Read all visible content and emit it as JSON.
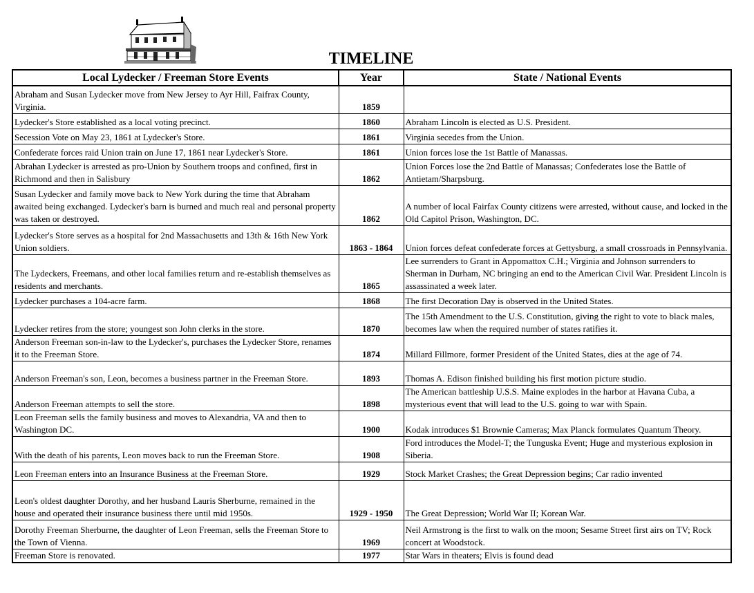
{
  "title": "TIMELINE",
  "headers": {
    "local": "Local Lydecker / Freeman Store Events",
    "year": "Year",
    "national": "State / National Events"
  },
  "rows": [
    {
      "local": "Abraham and Susan Lydecker move from New Jersey to Ayr Hill, Faifrax County, Virginia.",
      "year": "1859",
      "national": ""
    },
    {
      "local": "Lydecker's Store established as a local voting precinct.",
      "year": "1860",
      "national": "Abraham Lincoln is elected as U.S. President."
    },
    {
      "local": "Secession Vote on May 23, 1861 at Lydecker's Store.",
      "year": "1861",
      "national": "Virginia secedes from the Union."
    },
    {
      "local": "Confederate forces raid Union train on June 17, 1861 near Lydecker's Store.",
      "year": "1861",
      "national": "Union forces lose the 1st Battle of Manassas."
    },
    {
      "local": "Abrahan Lydecker is arrested as pro-Union by Southern troops and confined, first in Richmond and then in Salisbury",
      "year": "1862",
      "national": "Union Forces lose the 2nd Battle of Manassas;  Confederates lose the Battle of Antietam/Sharpsburg."
    },
    {
      "local": "Susan Lydecker and family move back to New York during the time that Abraham awaited being exchanged. Lydecker's barn is burned and much real and personal property was taken or destroyed.",
      "year": "1862",
      "national": "A number of local Fairfax County citizens were arrested, without cause, and locked in the Old Capitol Prison, Washington, DC."
    },
    {
      "local": "Lydecker's Store serves as a hospital for 2nd Massachusetts and 13th & 16th New York Union soldiers.",
      "year": "1863 - 1864",
      "national": "Union forces defeat confederate forces at Gettysburg, a small crossroads in Pennsylvania."
    },
    {
      "local": "The Lydeckers, Freemans, and other local families return and re-establish themselves as residents and merchants.",
      "year": "1865",
      "national": "Lee surrenders to Grant in Appomattox C.H.; Virginia and Johnson surrenders to Sherman in Durham, NC bringing an end to the American Civil War.  President Lincoln is assassinated a week later."
    },
    {
      "local": "Lydecker purchases a 104-acre farm.",
      "year": "1868",
      "national": "The first Decoration Day is observed in the United States."
    },
    {
      "local": "Lydecker retires from the store; youngest son John clerks in the store.",
      "year": "1870",
      "national": "The 15th Amendment to the U.S. Constitution, giving the right to vote to black males, becomes law when the required number of states ratifies it."
    },
    {
      "local": "Anderson Freeman son-in-law to the Lydecker's, purchases the Lydecker Store, renames it to the Freeman Store.",
      "year": "1874",
      "national": "Millard Fillmore, former President of the United States, dies at the age of 74."
    },
    {
      "local": "Anderson Freeman's son, Leon, becomes a business partner in the Freeman Store.",
      "year": "1893",
      "national": "Thomas A. Edison finished building his first motion picture studio."
    },
    {
      "local": "Anderson Freeman attempts to sell the store.",
      "year": "1898",
      "national": "The American battleship U.S.S. Maine explodes in the harbor at Havana Cuba, a mysterious event that will lead to the U.S. going to war with Spain."
    },
    {
      "local": "Leon Freeman sells the family business and moves to Alexandria, VA and then to Washington DC.",
      "year": "1900",
      "national": "Kodak introduces $1 Brownie Cameras;  Max Planck formulates Quantum Theory."
    },
    {
      "local": "With the death of his parents, Leon moves back to run the Freeman Store.",
      "year": "1908",
      "national": "Ford introduces the Model-T; the Tunguska Event; Huge and mysterious explosion in Siberia."
    },
    {
      "local": "Leon Freeman enters into an Insurance Business at the Freeman Store.",
      "year": "1929",
      "national": "Stock Market Crashes; the Great Depression begins; Car radio invented"
    },
    {
      "local": "Leon's oldest daughter Dorothy, and her husband Lauris Sherburne, remained in the house and operated their insurance business there until  mid 1950s.",
      "year": "1929 - 1950",
      "national": "The Great Depression; World War II; Korean War."
    },
    {
      "local": "Dorothy Freeman Sherburne, the daughter of Leon Freeman, sells the Freeman Store to the Town of Vienna.",
      "year": "1969",
      "national": "Neil Armstrong is the first to walk on the moon; Sesame Street first airs on TV; Rock concert at Woodstock."
    },
    {
      "local": "Freeman Store is renovated.",
      "year": "1977",
      "national": "Star Wars in theaters; Elvis is found dead"
    }
  ]
}
